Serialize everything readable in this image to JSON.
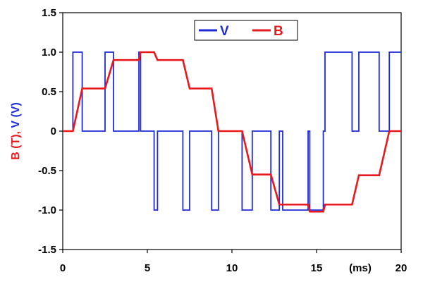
{
  "chart_data": {
    "type": "line",
    "title": "",
    "xlabel": "",
    "x_unit_label": "(ms)",
    "ylabel_parts": [
      {
        "text": "B (T)",
        "color": "#e8191d"
      },
      {
        "text": ", ",
        "color": "#e8191d"
      },
      {
        "text": "V (V)",
        "color": "#1f2bd8"
      }
    ],
    "xlim": [
      0,
      20
    ],
    "ylim": [
      -1.5,
      1.5
    ],
    "x_ticks": [
      0,
      5,
      10,
      15,
      20
    ],
    "x_tick_labels": [
      "0",
      "5",
      "10",
      "15",
      "20"
    ],
    "y_ticks": [
      1.5,
      1.0,
      0.5,
      0,
      -0.5,
      -1.0,
      -1.5
    ],
    "y_tick_labels": [
      "1.5",
      "1.0",
      "0.5",
      "0",
      "-0.5",
      "-1.0",
      "-1.5"
    ],
    "grid": false,
    "legend_position": "top-center",
    "series": [
      {
        "name": "V",
        "color": "#1f2bd8",
        "x": [
          0,
          0.6,
          0.6,
          1.15,
          1.15,
          2.5,
          2.5,
          3.0,
          3.0,
          4.5,
          4.5,
          4.6,
          4.6,
          5.4,
          5.4,
          5.6,
          5.6,
          7.1,
          7.1,
          7.5,
          7.5,
          8.8,
          8.8,
          9.2,
          9.2,
          10.6,
          10.6,
          11.2,
          11.2,
          12.3,
          12.3,
          12.8,
          12.8,
          13.0,
          13.0,
          14.5,
          14.5,
          14.6,
          14.6,
          15.4,
          15.4,
          15.5,
          15.5,
          17.1,
          17.1,
          17.5,
          17.5,
          18.7,
          18.7,
          19.3,
          19.3,
          20
        ],
        "y": [
          0,
          0,
          1.0,
          1.0,
          0,
          0,
          1.0,
          1.0,
          0,
          0,
          1.0,
          1.0,
          0,
          0,
          -1.0,
          -1.0,
          0,
          0,
          -1.0,
          -1.0,
          0,
          0,
          -1.0,
          -1.0,
          0,
          0,
          -1.0,
          -1.0,
          0,
          0,
          -1.0,
          -1.0,
          0,
          0,
          -1.0,
          -1.0,
          0,
          0,
          -1.0,
          -1.0,
          0,
          0,
          1.0,
          1.0,
          0,
          0,
          1.0,
          1.0,
          0,
          0,
          1.0,
          1.0
        ]
      },
      {
        "name": "B",
        "color": "#e8191d",
        "x": [
          0,
          0.6,
          1.15,
          2.5,
          3.0,
          4.5,
          4.6,
          5.4,
          5.6,
          7.1,
          7.5,
          8.8,
          9.2,
          10.6,
          11.2,
          12.3,
          12.8,
          14.5,
          14.6,
          15.4,
          15.5,
          17.1,
          17.5,
          18.7,
          19.3,
          20
        ],
        "y": [
          0,
          0,
          0.54,
          0.54,
          0.9,
          0.9,
          1.0,
          1.0,
          0.9,
          0.9,
          0.54,
          0.54,
          0,
          0,
          -0.55,
          -0.55,
          -0.93,
          -0.93,
          -1.02,
          -1.02,
          -0.93,
          -0.93,
          -0.56,
          -0.56,
          0,
          0
        ]
      }
    ]
  }
}
